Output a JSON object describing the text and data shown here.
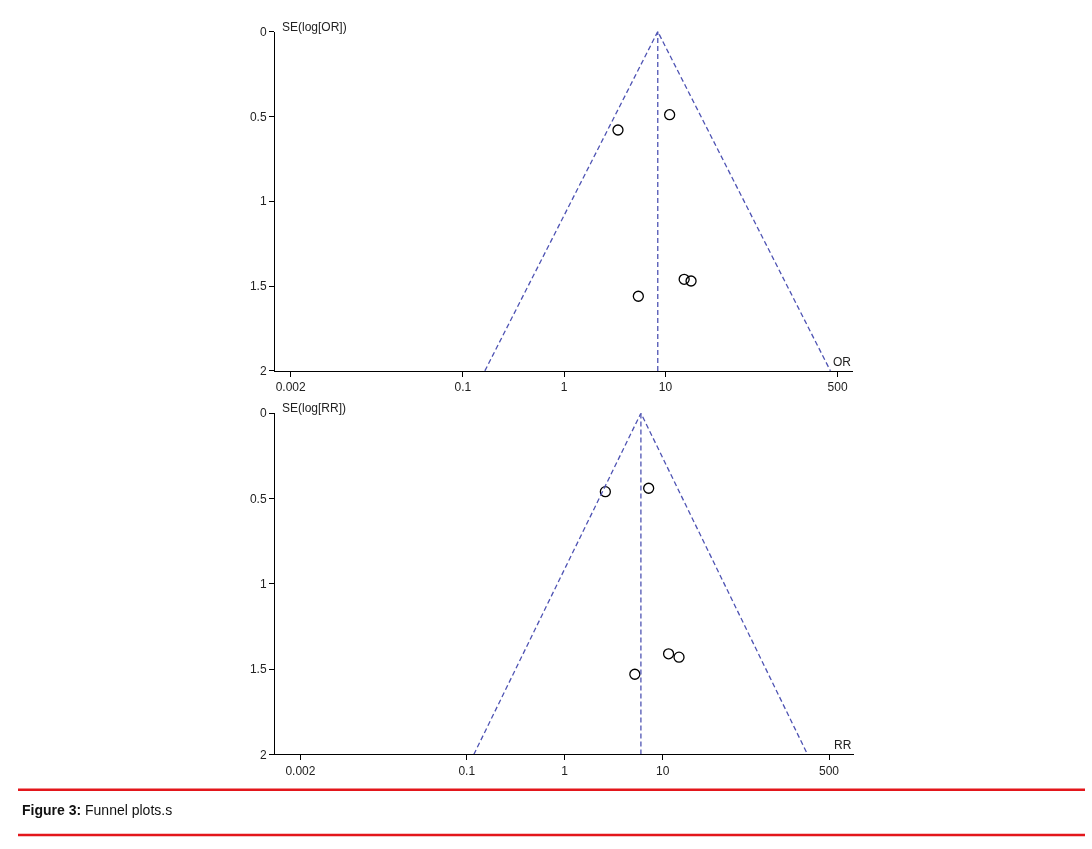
{
  "chart_data": [
    {
      "type": "scatter",
      "xlabel": "OR",
      "ylabel": "SE(log[OR])",
      "log": "x",
      "xlim": [
        0.0014,
        710
      ],
      "xticks": [
        0.002,
        0.1,
        1,
        10,
        500
      ],
      "ylim": [
        2,
        0
      ],
      "yticks": [
        0,
        0.5,
        1,
        1.5,
        2
      ],
      "series": [
        {
          "marker": "circle",
          "color": "#000000",
          "x": [
            11.0,
            3.4,
            15.3,
            17.9,
            5.4
          ],
          "values": [
            0.49,
            0.58,
            1.46,
            1.47,
            1.56
          ]
        },
        {
          "type": "line",
          "line_style": "dashed",
          "color": "#4e53b3",
          "x": [
            0.165,
            8.4,
            425
          ],
          "values": [
            2,
            0,
            2
          ]
        }
      ],
      "ref_lines": [
        {
          "axis": "x",
          "value": 8.4,
          "color": "#4e53b3",
          "line_style": "dashed"
        }
      ]
    },
    {
      "type": "scatter",
      "xlabel": "RR",
      "ylabel": "SE(log[RR])",
      "log": "x",
      "xlim": [
        0.0011,
        900
      ],
      "xticks": [
        0.002,
        0.1,
        1,
        10,
        500
      ],
      "ylim": [
        2,
        0
      ],
      "yticks": [
        0,
        0.5,
        1,
        1.5,
        2
      ],
      "series": [
        {
          "marker": "circle",
          "color": "#000000",
          "x": [
            2.6,
            7.2,
            11.5,
            14.7,
            5.2
          ],
          "values": [
            0.46,
            0.44,
            1.41,
            1.43,
            1.53
          ]
        },
        {
          "type": "line",
          "line_style": "dashed",
          "color": "#4e53b3",
          "x": [
            0.118,
            6.0,
            302
          ],
          "values": [
            2,
            0,
            2
          ]
        }
      ],
      "ref_lines": [
        {
          "axis": "x",
          "value": 6.0,
          "color": "#4e53b3",
          "line_style": "dashed"
        }
      ],
      "annotations": [
        "Figure 3: Funnel plots.s"
      ]
    }
  ]
}
